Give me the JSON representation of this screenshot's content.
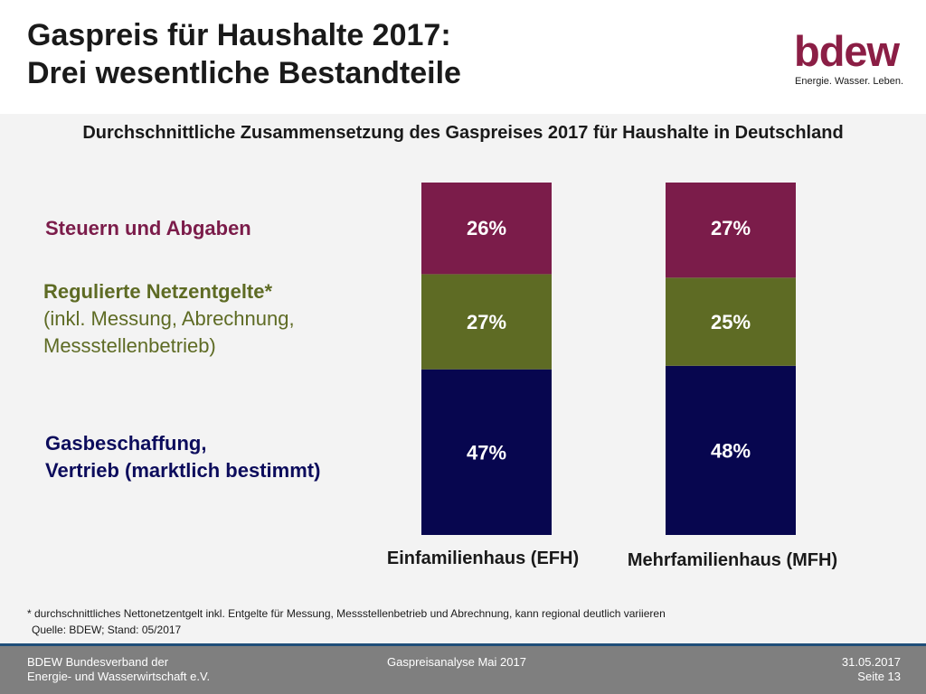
{
  "header": {
    "title_line1": "Gaspreis für Haushalte 2017:",
    "title_line2": "Drei wesentliche Bestandteile",
    "logo_text": "bdew",
    "logo_tagline": "Energie. Wasser. Leben."
  },
  "subtitle": "Durchschnittliche Zusammensetzung des Gaspreises 2017 für Haushalte in Deutschland",
  "legend": {
    "taxes": "Steuern und Abgaben",
    "net_line1": "Regulierte Netzentgelte*",
    "net_line2": "(inkl. Messung, Abrechnung,",
    "net_line3": "Messstellenbetrieb)",
    "gas_line1": "Gasbeschaffung,",
    "gas_line2": "Vertrieb (marktlich bestimmt)"
  },
  "chart_data": {
    "type": "bar",
    "stacked": true,
    "categories": [
      "Einfamilienhaus (EFH)",
      "Mehrfamilienhaus (MFH)"
    ],
    "series": [
      {
        "name": "Gasbeschaffung, Vertrieb (marktlich bestimmt)",
        "values": [
          47,
          48
        ],
        "labels": [
          "47%",
          "48%"
        ],
        "color": "#07064f"
      },
      {
        "name": "Regulierte Netzentgelte*",
        "values": [
          27,
          25
        ],
        "labels": [
          "27%",
          "25%"
        ],
        "color": "#5e6b24"
      },
      {
        "name": "Steuern und Abgaben",
        "values": [
          26,
          27
        ],
        "labels": [
          "26%",
          "27%"
        ],
        "color": "#7b1c4a"
      }
    ],
    "ylim": [
      0,
      100
    ]
  },
  "footnote": {
    "line1": "* durchschnittliches Nettonetzentgelt inkl. Entgelte für Messung, Messstellenbetrieb und Abrechnung, kann regional deutlich variieren",
    "line2": "Quelle: BDEW; Stand: 05/2017"
  },
  "footer": {
    "org_line1": "BDEW Bundesverband der",
    "org_line2": "Energie- und Wasserwirtschaft e.V.",
    "center": "Gaspreisanalyse Mai 2017",
    "date": "31.05.2017",
    "page": "Seite 13"
  },
  "colors": {
    "brand": "#8b1e45",
    "taxes": "#7b1c4a",
    "net": "#5e6b24",
    "gas": "#07064f",
    "footer": "#7f7f7f"
  }
}
